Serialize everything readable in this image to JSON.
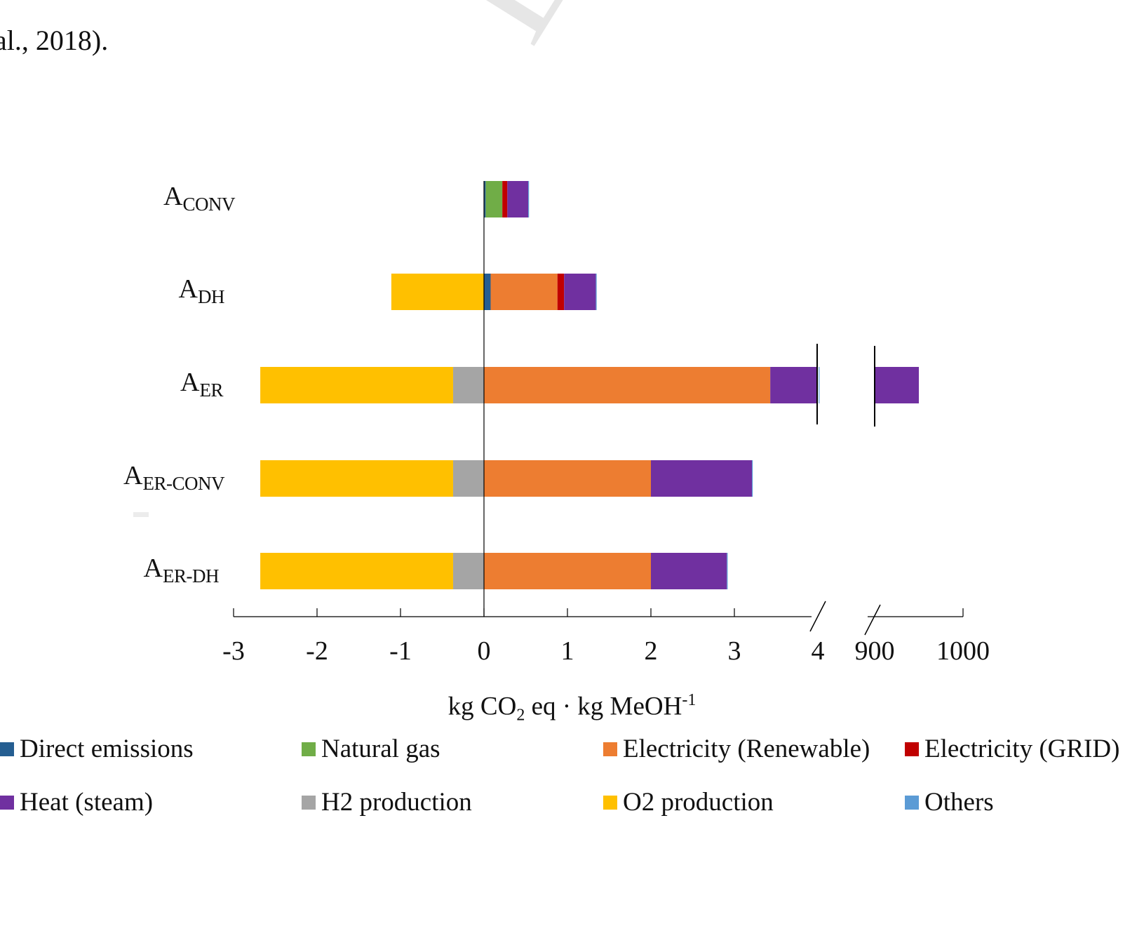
{
  "top_text": "al., 2018).",
  "watermark": "ED",
  "chart_data": {
    "type": "bar",
    "orientation": "horizontal",
    "stacked": true,
    "categories": [
      {
        "main": "A",
        "sub": "CONV"
      },
      {
        "main": "A",
        "sub": "DH"
      },
      {
        "main": "A",
        "sub": "ER"
      },
      {
        "main": "A",
        "sub": "ER-CONV"
      },
      {
        "main": "A",
        "sub": "ER-DH"
      }
    ],
    "negative_series": [
      {
        "name": "H2 production",
        "color": "#a5a5a5",
        "values": [
          0,
          0,
          -0.37,
          -0.37,
          -0.37
        ]
      },
      {
        "name": "O2 production",
        "color": "#ffc000",
        "values": [
          0,
          -1.11,
          -2.31,
          -2.31,
          -2.31
        ]
      }
    ],
    "positive_series": [
      {
        "name": "Direct emissions",
        "color": "#255e91",
        "values": [
          0.02,
          0.08,
          0,
          0,
          0
        ]
      },
      {
        "name": "Natural gas",
        "color": "#70ad47",
        "values": [
          0.2,
          0,
          0,
          0,
          0
        ]
      },
      {
        "name": "Electricity (Renewable)",
        "color": "#ed7d31",
        "values": [
          0,
          0.8,
          3.43,
          2.0,
          2.0
        ]
      },
      {
        "name": "Electricity (GRID)",
        "color": "#c00000",
        "values": [
          0.06,
          0.08,
          0,
          0,
          0
        ]
      },
      {
        "name": "Heat (steam)",
        "color": "#7030a0",
        "values": [
          0.25,
          0.38,
          0.58,
          1.21,
          0.91
        ]
      },
      {
        "name": "Others",
        "color": "#5b9bd5",
        "values": [
          0.01,
          0.01,
          0.01,
          0.01,
          0.01
        ]
      }
    ],
    "broken_segment": {
      "category_index": 2,
      "series": "Heat (steam)",
      "value_range_after_break": [
        900,
        950
      ]
    },
    "x_axis": {
      "segments": [
        {
          "range": [
            -3,
            4
          ]
        },
        {
          "range": [
            900,
            1000
          ]
        }
      ],
      "tick_labels": [
        "-3",
        "-2",
        "-1",
        "0",
        "1",
        "2",
        "3",
        "4",
        "900",
        "1000"
      ],
      "title_parts": {
        "a": "kg CO",
        "b": "2",
        "c": " eq · kg MeOH",
        "d": "-1"
      }
    },
    "legend": {
      "position": "bottom",
      "items": [
        {
          "name": "Direct emissions",
          "color": "#255e91"
        },
        {
          "name": "Natural gas",
          "color": "#70ad47"
        },
        {
          "name": "Electricity (Renewable)",
          "color": "#ed7d31"
        },
        {
          "name": "Electricity (GRID)",
          "color": "#c00000"
        },
        {
          "name": "Heat (steam)",
          "color": "#7030a0"
        },
        {
          "name": "H2 production",
          "color": "#a5a5a5"
        },
        {
          "name": "O2 production",
          "color": "#ffc000"
        },
        {
          "name": "Others",
          "color": "#5b9bd5"
        }
      ]
    }
  }
}
